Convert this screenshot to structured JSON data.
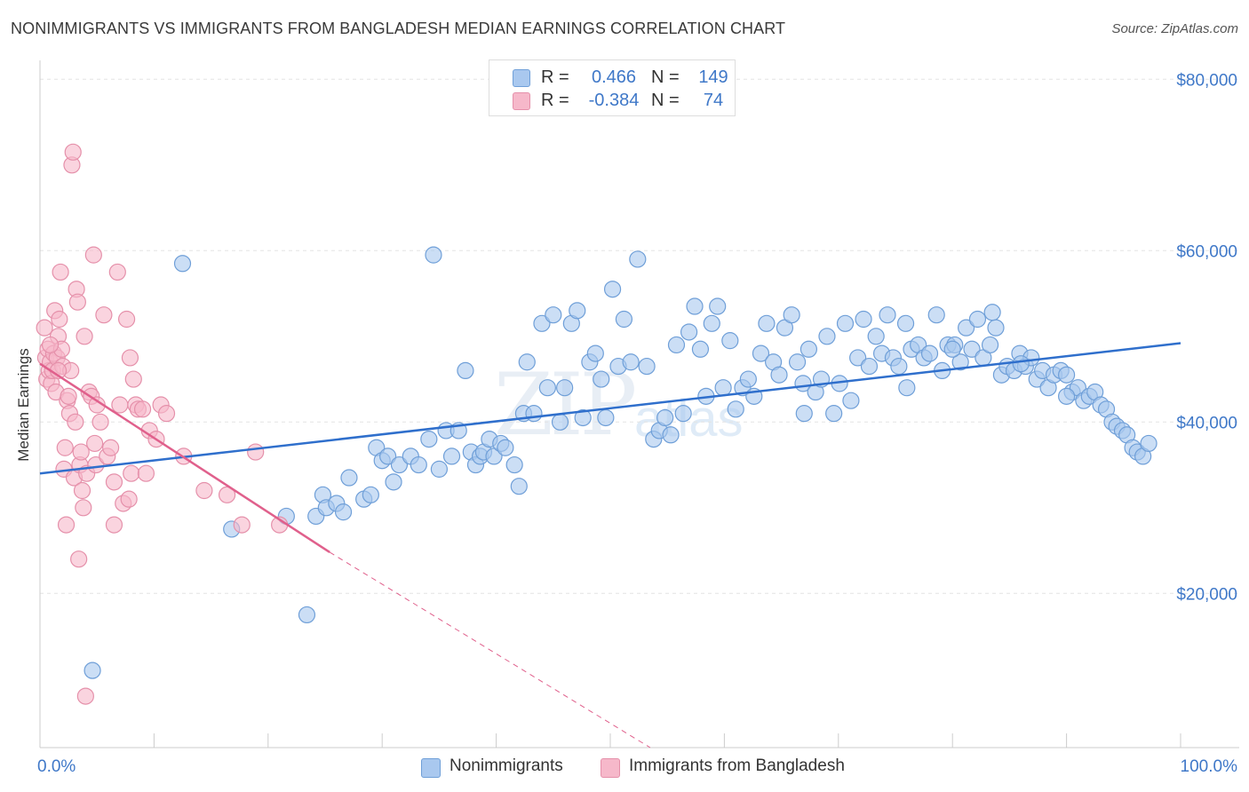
{
  "title": "NONIMMIGRANTS VS IMMIGRANTS FROM BANGLADESH MEDIAN EARNINGS CORRELATION CHART",
  "source": "Source: ZipAtlas.com",
  "watermark": {
    "zip": "ZIP",
    "atlas": "atlas"
  },
  "legend_top": {
    "rows": [
      {
        "r_label": "R =",
        "r_value": "0.466",
        "n_label": "N =",
        "n_value": "149",
        "color": "#a9c8ef"
      },
      {
        "r_label": "R =",
        "r_value": "-0.384",
        "n_label": "N =",
        "n_value": "74",
        "color": "#f6b8ca"
      }
    ]
  },
  "legend_bottom": {
    "items": [
      {
        "label": "Nonimmigrants",
        "color": "#a9c8ef"
      },
      {
        "label": "Immigrants from Bangladesh",
        "color": "#f6b8ca"
      }
    ]
  },
  "chart_data": {
    "type": "scatter",
    "title": "NONIMMIGRANTS VS IMMIGRANTS FROM BANGLADESH MEDIAN EARNINGS CORRELATION CHART",
    "xlabel": "",
    "ylabel": "Median Earnings",
    "xlim": [
      0,
      100
    ],
    "ylim": [
      2000,
      82000
    ],
    "x_tick_labels": [
      "0.0%",
      "100.0%"
    ],
    "y_ticks": [
      20000,
      40000,
      60000,
      80000
    ],
    "y_tick_labels": [
      "$20,000",
      "$40,000",
      "$60,000",
      "$80,000"
    ],
    "grid": true,
    "series": [
      {
        "name": "Nonimmigrants",
        "color": "#a9c8ef",
        "stroke": "#6f9fd8",
        "trend": {
          "x": [
            0,
            100
          ],
          "y": [
            34000,
            49200
          ],
          "color": "#2f6fcc"
        },
        "points": [
          [
            4.6,
            11000
          ],
          [
            12.5,
            58500
          ],
          [
            16.8,
            27500
          ],
          [
            21.6,
            29000
          ],
          [
            23.4,
            17500
          ],
          [
            24.2,
            29000
          ],
          [
            24.8,
            31500
          ],
          [
            25.1,
            30000
          ],
          [
            26.0,
            30500
          ],
          [
            26.6,
            29500
          ],
          [
            27.1,
            33500
          ],
          [
            28.4,
            31000
          ],
          [
            29.0,
            31500
          ],
          [
            29.5,
            37000
          ],
          [
            30.0,
            35500
          ],
          [
            30.5,
            36000
          ],
          [
            31.0,
            33000
          ],
          [
            31.5,
            35000
          ],
          [
            32.5,
            36000
          ],
          [
            33.2,
            35000
          ],
          [
            34.1,
            38000
          ],
          [
            34.5,
            59500
          ],
          [
            35.0,
            34500
          ],
          [
            35.6,
            39000
          ],
          [
            36.1,
            36000
          ],
          [
            36.7,
            39000
          ],
          [
            37.3,
            46000
          ],
          [
            37.8,
            36500
          ],
          [
            38.2,
            35000
          ],
          [
            38.6,
            36000
          ],
          [
            38.9,
            36500
          ],
          [
            39.4,
            38000
          ],
          [
            39.8,
            36000
          ],
          [
            40.4,
            37500
          ],
          [
            40.8,
            37000
          ],
          [
            41.6,
            35000
          ],
          [
            42.0,
            32500
          ],
          [
            42.4,
            41000
          ],
          [
            42.7,
            47000
          ],
          [
            43.3,
            41000
          ],
          [
            44.0,
            51500
          ],
          [
            44.5,
            44000
          ],
          [
            45.0,
            52500
          ],
          [
            45.6,
            40000
          ],
          [
            46.0,
            44000
          ],
          [
            46.6,
            51500
          ],
          [
            47.1,
            53000
          ],
          [
            47.6,
            40500
          ],
          [
            48.2,
            47000
          ],
          [
            48.7,
            48000
          ],
          [
            49.2,
            45000
          ],
          [
            49.6,
            40500
          ],
          [
            50.2,
            55500
          ],
          [
            50.7,
            46500
          ],
          [
            51.2,
            52000
          ],
          [
            51.8,
            47000
          ],
          [
            52.4,
            59000
          ],
          [
            53.2,
            46500
          ],
          [
            53.8,
            38000
          ],
          [
            54.3,
            39000
          ],
          [
            54.8,
            40500
          ],
          [
            55.3,
            38500
          ],
          [
            55.8,
            49000
          ],
          [
            56.4,
            41000
          ],
          [
            56.9,
            50500
          ],
          [
            57.4,
            53500
          ],
          [
            57.9,
            48500
          ],
          [
            58.4,
            43000
          ],
          [
            58.9,
            51500
          ],
          [
            59.4,
            53500
          ],
          [
            59.9,
            44000
          ],
          [
            60.5,
            49500
          ],
          [
            61.0,
            41500
          ],
          [
            61.6,
            44000
          ],
          [
            62.1,
            45000
          ],
          [
            62.6,
            43000
          ],
          [
            63.2,
            48000
          ],
          [
            63.7,
            51500
          ],
          [
            64.3,
            47000
          ],
          [
            64.8,
            45500
          ],
          [
            65.3,
            51000
          ],
          [
            65.9,
            52500
          ],
          [
            66.4,
            47000
          ],
          [
            66.9,
            44500
          ],
          [
            67.4,
            48500
          ],
          [
            68.0,
            43500
          ],
          [
            68.5,
            45000
          ],
          [
            69.0,
            50000
          ],
          [
            69.6,
            41000
          ],
          [
            70.1,
            44500
          ],
          [
            70.6,
            51500
          ],
          [
            71.1,
            42500
          ],
          [
            71.7,
            47500
          ],
          [
            72.2,
            52000
          ],
          [
            72.7,
            46500
          ],
          [
            73.3,
            50000
          ],
          [
            73.8,
            48000
          ],
          [
            74.3,
            52500
          ],
          [
            74.8,
            47500
          ],
          [
            75.3,
            46500
          ],
          [
            75.9,
            51500
          ],
          [
            76.4,
            48500
          ],
          [
            77.0,
            49000
          ],
          [
            77.5,
            47500
          ],
          [
            78.0,
            48000
          ],
          [
            78.6,
            52500
          ],
          [
            79.1,
            46000
          ],
          [
            79.6,
            49000
          ],
          [
            80.2,
            49000
          ],
          [
            80.7,
            47000
          ],
          [
            81.2,
            51000
          ],
          [
            81.7,
            48500
          ],
          [
            82.2,
            52000
          ],
          [
            82.7,
            47500
          ],
          [
            83.3,
            49000
          ],
          [
            83.8,
            51000
          ],
          [
            84.3,
            45500
          ],
          [
            84.8,
            46500
          ],
          [
            85.4,
            46000
          ],
          [
            85.9,
            48000
          ],
          [
            86.4,
            46500
          ],
          [
            86.9,
            47500
          ],
          [
            87.4,
            45000
          ],
          [
            87.9,
            46000
          ],
          [
            88.4,
            44000
          ],
          [
            88.9,
            45500
          ],
          [
            89.5,
            46000
          ],
          [
            90.0,
            45500
          ],
          [
            90.5,
            43500
          ],
          [
            91.0,
            44000
          ],
          [
            91.5,
            42500
          ],
          [
            92.0,
            43000
          ],
          [
            92.5,
            43500
          ],
          [
            93.0,
            42000
          ],
          [
            93.5,
            41500
          ],
          [
            94.0,
            40000
          ],
          [
            94.4,
            39500
          ],
          [
            94.9,
            39000
          ],
          [
            95.3,
            38500
          ],
          [
            95.8,
            37000
          ],
          [
            96.2,
            36500
          ],
          [
            96.7,
            36000
          ],
          [
            97.2,
            37500
          ],
          [
            90.0,
            43000
          ],
          [
            86.0,
            46800
          ],
          [
            83.5,
            52800
          ],
          [
            80.0,
            48500
          ],
          [
            76.0,
            44000
          ],
          [
            67.0,
            41000
          ]
        ]
      },
      {
        "name": "Immigrants from Bangladesh",
        "color": "#f6b8ca",
        "stroke": "#e590aa",
        "trend": {
          "x": [
            0,
            25.4
          ],
          "y": [
            46800,
            24800
          ],
          "dash_to": {
            "x": 53.5,
            "y": 2000
          },
          "color": "#e0608c"
        },
        "points": [
          [
            0.4,
            51000
          ],
          [
            0.5,
            47500
          ],
          [
            0.6,
            45000
          ],
          [
            0.7,
            48500
          ],
          [
            0.8,
            46000
          ],
          [
            0.9,
            47000
          ],
          [
            1.0,
            44500
          ],
          [
            1.1,
            46000
          ],
          [
            1.2,
            48000
          ],
          [
            1.3,
            53000
          ],
          [
            1.4,
            43500
          ],
          [
            1.5,
            47500
          ],
          [
            1.6,
            50000
          ],
          [
            1.7,
            52000
          ],
          [
            1.8,
            57500
          ],
          [
            1.9,
            48500
          ],
          [
            2.0,
            46500
          ],
          [
            2.1,
            34500
          ],
          [
            2.2,
            37000
          ],
          [
            2.3,
            28000
          ],
          [
            2.4,
            42500
          ],
          [
            2.5,
            43000
          ],
          [
            2.6,
            41000
          ],
          [
            2.7,
            46000
          ],
          [
            2.8,
            70000
          ],
          [
            2.9,
            71500
          ],
          [
            3.0,
            33500
          ],
          [
            3.1,
            40000
          ],
          [
            3.2,
            55500
          ],
          [
            3.3,
            54000
          ],
          [
            3.4,
            24000
          ],
          [
            3.5,
            35000
          ],
          [
            3.6,
            36500
          ],
          [
            3.7,
            32000
          ],
          [
            3.8,
            30000
          ],
          [
            3.9,
            50000
          ],
          [
            4.0,
            8000
          ],
          [
            4.1,
            34000
          ],
          [
            4.3,
            43500
          ],
          [
            4.5,
            43000
          ],
          [
            4.7,
            59500
          ],
          [
            4.8,
            37500
          ],
          [
            4.9,
            35000
          ],
          [
            5.0,
            42000
          ],
          [
            5.3,
            40000
          ],
          [
            5.6,
            52500
          ],
          [
            5.9,
            36000
          ],
          [
            6.2,
            37000
          ],
          [
            6.5,
            33000
          ],
          [
            6.8,
            57500
          ],
          [
            6.5,
            28000
          ],
          [
            7.0,
            42000
          ],
          [
            7.3,
            30500
          ],
          [
            7.6,
            52000
          ],
          [
            7.8,
            31000
          ],
          [
            7.9,
            47500
          ],
          [
            8.0,
            34000
          ],
          [
            8.2,
            45000
          ],
          [
            8.4,
            42000
          ],
          [
            8.6,
            41500
          ],
          [
            9.0,
            41500
          ],
          [
            9.3,
            34000
          ],
          [
            9.6,
            39000
          ],
          [
            10.2,
            38000
          ],
          [
            10.6,
            42000
          ],
          [
            11.1,
            41000
          ],
          [
            12.6,
            36000
          ],
          [
            14.4,
            32000
          ],
          [
            16.4,
            31500
          ],
          [
            17.7,
            28000
          ],
          [
            18.9,
            36500
          ],
          [
            21.0,
            28000
          ],
          [
            0.9,
            49000
          ],
          [
            1.6,
            46000
          ]
        ]
      }
    ]
  }
}
